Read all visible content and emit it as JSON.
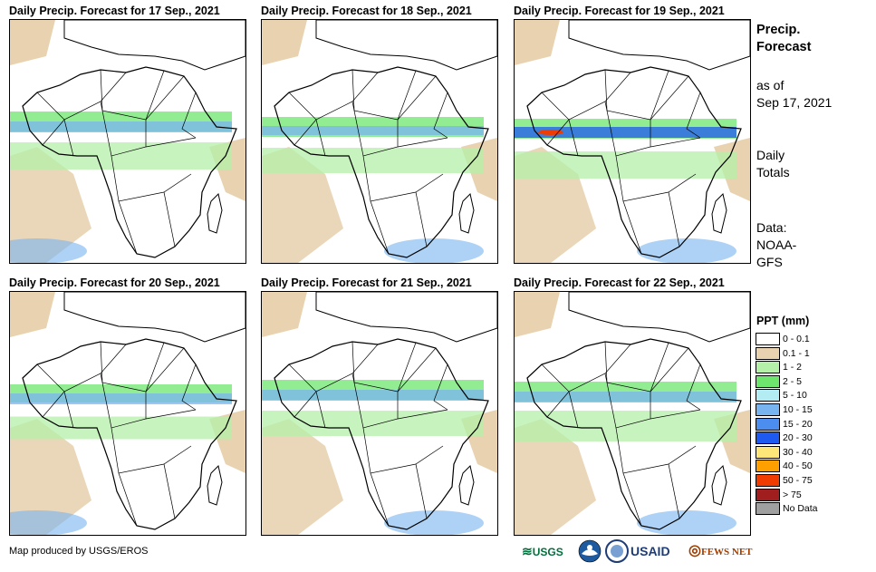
{
  "panels": [
    {
      "title": "Daily Precip. Forecast for 17  Sep., 2021"
    },
    {
      "title": "Daily Precip. Forecast for 18  Sep., 2021"
    },
    {
      "title": "Daily Precip. Forecast for 19  Sep., 2021"
    },
    {
      "title": "Daily Precip. Forecast for 20  Sep., 2021"
    },
    {
      "title": "Daily Precip. Forecast for 21  Sep., 2021"
    },
    {
      "title": "Daily Precip. Forecast for 22  Sep., 2021"
    }
  ],
  "sidebar": {
    "title_line1": "Precip.",
    "title_line2": "Forecast",
    "asof_line1": "as of",
    "asof_line2": "Sep 17, 2021",
    "totals_line1": "Daily",
    "totals_line2": "Totals",
    "data_line1": "Data:",
    "data_line2": "NOAA-",
    "data_line3": "GFS"
  },
  "legend": {
    "title": "PPT (mm)",
    "items": [
      {
        "label": "0 - 0.1",
        "color": "#ffffff"
      },
      {
        "label": "0.1 - 1",
        "color": "#e8d2b0"
      },
      {
        "label": "1 - 2",
        "color": "#b4f0a8"
      },
      {
        "label": "2 - 5",
        "color": "#6ee66e"
      },
      {
        "label": "5 - 10",
        "color": "#b4ecf4"
      },
      {
        "label": "10 - 15",
        "color": "#78b4f0"
      },
      {
        "label": "15 - 20",
        "color": "#4c8ef0"
      },
      {
        "label": "20 - 30",
        "color": "#1e5af0"
      },
      {
        "label": "30 - 40",
        "color": "#ffe678"
      },
      {
        "label": "40 - 50",
        "color": "#ffa000"
      },
      {
        "label": "50 - 75",
        "color": "#f03c00"
      },
      {
        "label": "> 75",
        "color": "#a01e1e"
      },
      {
        "label": "No Data",
        "color": "#a0a0a0"
      }
    ]
  },
  "credit": "Map produced by USGS/EROS",
  "logos": {
    "usgs": "USGS",
    "usaid": "USAID",
    "fewsnet": "FEWS NET"
  },
  "colors": {
    "desert": "#e8d2b0",
    "light_green": "#b4f0a8",
    "green": "#6ee66e",
    "light_blue": "#78b4f0",
    "blue": "#1e5af0",
    "red": "#f03c00"
  }
}
